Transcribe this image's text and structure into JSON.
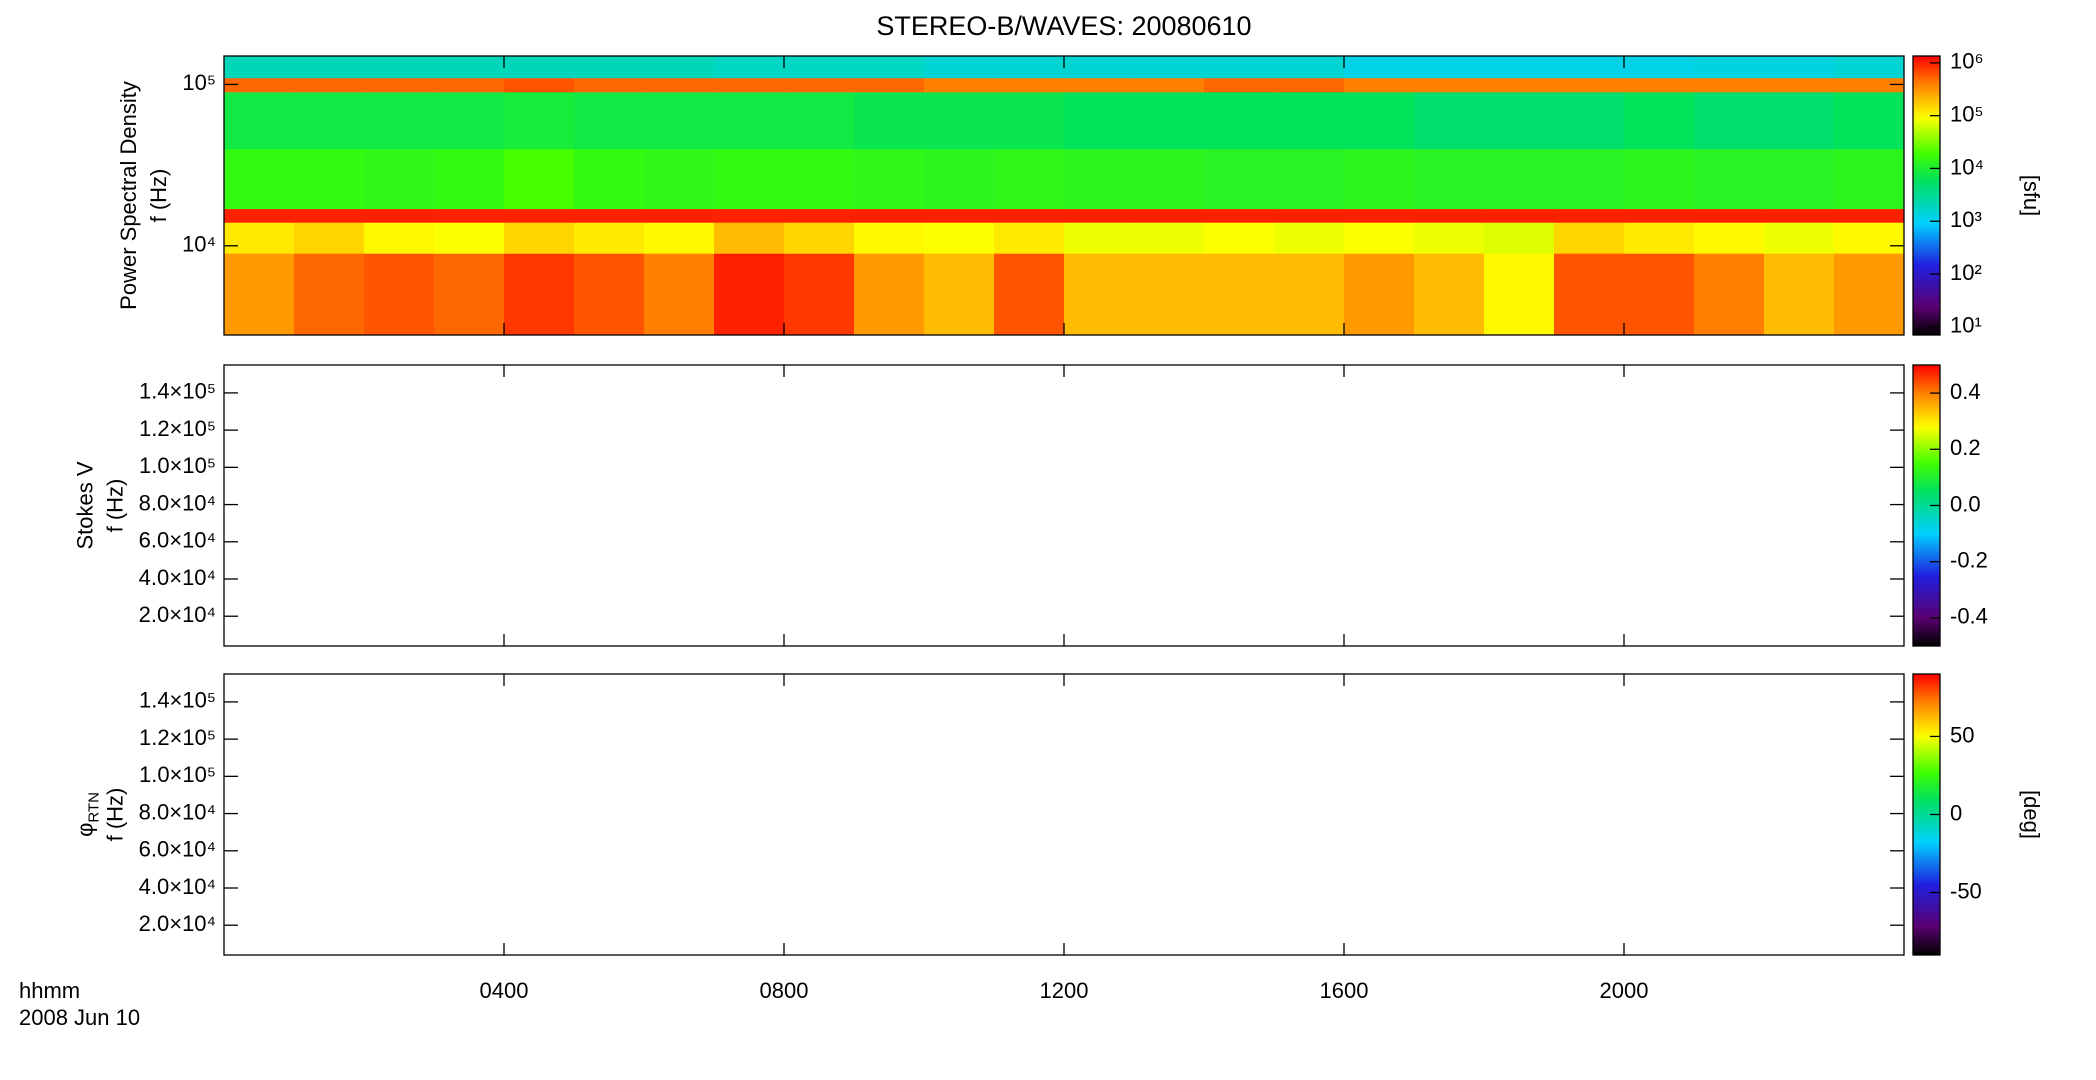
{
  "title": "STEREO-B/WAVES: 20080610",
  "xlabel": "hhmm",
  "date": "2008 Jun 10",
  "chart_data": [
    {
      "type": "heatmap",
      "yscale": "log",
      "ylabel": [
        "Power Spectral Density",
        "f (Hz)"
      ],
      "ylim": [
        2800,
        150000
      ],
      "yticks": [
        {
          "value": 10000,
          "label": "10⁴"
        },
        {
          "value": 100000,
          "label": "10⁵"
        }
      ],
      "xlim": [
        0,
        24
      ],
      "xticks": [
        {
          "value": 4,
          "label": "0400"
        },
        {
          "value": 8,
          "label": "0800"
        },
        {
          "value": 12,
          "label": "1200"
        },
        {
          "value": 16,
          "label": "1600"
        },
        {
          "value": 20,
          "label": "2000"
        }
      ],
      "time_bins": [
        0,
        1,
        2,
        3,
        4,
        5,
        6,
        7,
        8,
        9,
        10,
        11,
        12,
        13,
        14,
        15,
        16,
        17,
        18,
        19,
        20,
        21,
        22,
        23,
        24
      ],
      "freq_bins": [
        2800,
        9000,
        14000,
        17000,
        40000,
        90000,
        110000,
        150000
      ],
      "z": [
        [
          300000,
          500000,
          600000,
          500000,
          800000,
          600000,
          400000,
          1000000,
          800000,
          300000,
          200000,
          600000,
          200000,
          200000,
          200000,
          200000,
          300000,
          200000,
          100000,
          600000,
          600000,
          400000,
          200000,
          300000
        ],
        [
          120000,
          150000,
          100000,
          90000,
          150000,
          120000,
          100000,
          200000,
          150000,
          100000,
          90000,
          120000,
          80000,
          80000,
          90000,
          80000,
          90000,
          80000,
          70000,
          150000,
          120000,
          100000,
          80000,
          100000
        ],
        [
          1000000,
          1000000,
          1000000,
          1000000,
          1000000,
          1000000,
          1000000,
          1000000,
          1000000,
          1000000,
          1000000,
          1000000,
          1000000,
          1000000,
          1000000,
          1000000,
          1000000,
          1000000,
          1000000,
          1000000,
          1000000,
          1000000,
          1000000,
          1000000
        ],
        [
          15000,
          15000,
          14000,
          15000,
          20000,
          15000,
          14000,
          15000,
          15000,
          14000,
          13000,
          14000,
          13000,
          13000,
          12000,
          12000,
          13000,
          12000,
          12000,
          12000,
          13000,
          12000,
          12000,
          13000
        ],
        [
          8000,
          8000,
          8000,
          8000,
          9000,
          8000,
          8000,
          8000,
          8000,
          7000,
          7000,
          7000,
          6000,
          6000,
          6000,
          6000,
          6000,
          5000,
          5000,
          5000,
          6000,
          5000,
          5000,
          6000
        ],
        [
          500000,
          500000,
          500000,
          500000,
          600000,
          500000,
          500000,
          500000,
          500000,
          500000,
          400000,
          400000,
          400000,
          400000,
          500000,
          500000,
          400000,
          400000,
          400000,
          400000,
          400000,
          400000,
          400000,
          400000
        ],
        [
          2000,
          2000,
          2000,
          2000,
          2000,
          2000,
          2000,
          1800,
          1800,
          1800,
          1500,
          1500,
          1500,
          1500,
          1500,
          1500,
          1200,
          1200,
          1200,
          1200,
          1200,
          1300,
          1300,
          1500
        ]
      ],
      "colormap": "rainbow",
      "cscale": "log",
      "clim": [
        7,
        1350000
      ],
      "cticks": [
        {
          "value": 10,
          "label": "10¹"
        },
        {
          "value": 100,
          "label": "10²"
        },
        {
          "value": 1000,
          "label": "10³"
        },
        {
          "value": 10000,
          "label": "10⁴"
        },
        {
          "value": 100000,
          "label": "10⁵"
        },
        {
          "value": 1000000,
          "label": "10⁶"
        }
      ],
      "clabel": "[sfu]"
    },
    {
      "type": "heatmap",
      "yscale": "linear",
      "ylabel": [
        "Stokes V",
        "f (Hz)"
      ],
      "ylim": [
        4000,
        155000
      ],
      "yticks": [
        {
          "value": 20000,
          "label": "2.0×10⁴"
        },
        {
          "value": 40000,
          "label": "4.0×10⁴"
        },
        {
          "value": 60000,
          "label": "6.0×10⁴"
        },
        {
          "value": 80000,
          "label": "8.0×10⁴"
        },
        {
          "value": 100000,
          "label": "1.0×10⁵"
        },
        {
          "value": 120000,
          "label": "1.2×10⁵"
        },
        {
          "value": 140000,
          "label": "1.4×10⁵"
        }
      ],
      "xlim": [
        0,
        24
      ],
      "xticks": [
        {
          "value": 4,
          "label": "0400"
        },
        {
          "value": 8,
          "label": "0800"
        },
        {
          "value": 12,
          "label": "1200"
        },
        {
          "value": 16,
          "label": "1600"
        },
        {
          "value": 20,
          "label": "2000"
        }
      ],
      "colormap": "rainbow",
      "cscale": "linear",
      "clim": [
        -0.5,
        0.5
      ],
      "cticks": [
        -0.4,
        -0.2,
        {
          "value": 0,
          "label": "0.0"
        },
        0.2,
        0.4
      ]
    },
    {
      "type": "heatmap",
      "yscale": "linear",
      "ylabel": [
        "φ",
        "f (Hz)"
      ],
      "ylabel_sub": "RTN",
      "ylim": [
        4000,
        155000
      ],
      "yticks": [
        {
          "value": 20000,
          "label": "2.0×10⁴"
        },
        {
          "value": 40000,
          "label": "4.0×10⁴"
        },
        {
          "value": 60000,
          "label": "6.0×10⁴"
        },
        {
          "value": 80000,
          "label": "8.0×10⁴"
        },
        {
          "value": 100000,
          "label": "1.0×10⁵"
        },
        {
          "value": 120000,
          "label": "1.2×10⁵"
        },
        {
          "value": 140000,
          "label": "1.4×10⁵"
        }
      ],
      "xlim": [
        0,
        24
      ],
      "xticks": [
        {
          "value": 4,
          "label": "0400"
        },
        {
          "value": 8,
          "label": "0800"
        },
        {
          "value": 12,
          "label": "1200"
        },
        {
          "value": 16,
          "label": "1600"
        },
        {
          "value": 20,
          "label": "2000"
        }
      ],
      "colormap": "rainbow",
      "cscale": "linear",
      "clim": [
        -90,
        90
      ],
      "cticks": [
        -50,
        0,
        50
      ],
      "clabel": "[deg]"
    }
  ]
}
